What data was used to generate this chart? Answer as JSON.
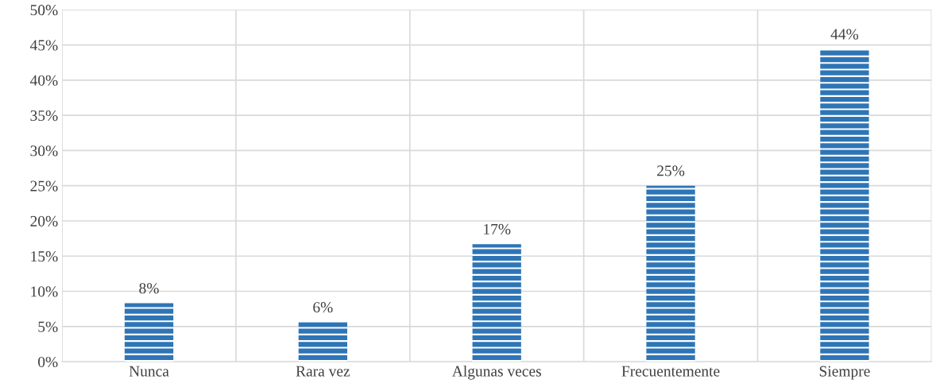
{
  "chart_data": {
    "type": "bar",
    "categories": [
      "Nunca",
      "Rara vez",
      "Algunas veces",
      "Frecuentemente",
      "Siempre"
    ],
    "values": [
      8.3,
      5.6,
      16.7,
      25,
      44.4
    ],
    "value_labels": [
      "8%",
      "6%",
      "17%",
      "25%",
      "44%"
    ],
    "color": "#2e75b6",
    "ylim": [
      0,
      50
    ],
    "yticks": [
      {
        "value": 0,
        "label": "0%"
      },
      {
        "value": 5,
        "label": "5%"
      },
      {
        "value": 10,
        "label": "10%"
      },
      {
        "value": 15,
        "label": "15%"
      },
      {
        "value": 20,
        "label": "20%"
      },
      {
        "value": 25,
        "label": "25%"
      },
      {
        "value": 30,
        "label": "30%"
      },
      {
        "value": 35,
        "label": "35%"
      },
      {
        "value": 40,
        "label": "40%"
      },
      {
        "value": 45,
        "label": "45%"
      },
      {
        "value": 50,
        "label": "50%"
      }
    ],
    "grid": true
  }
}
